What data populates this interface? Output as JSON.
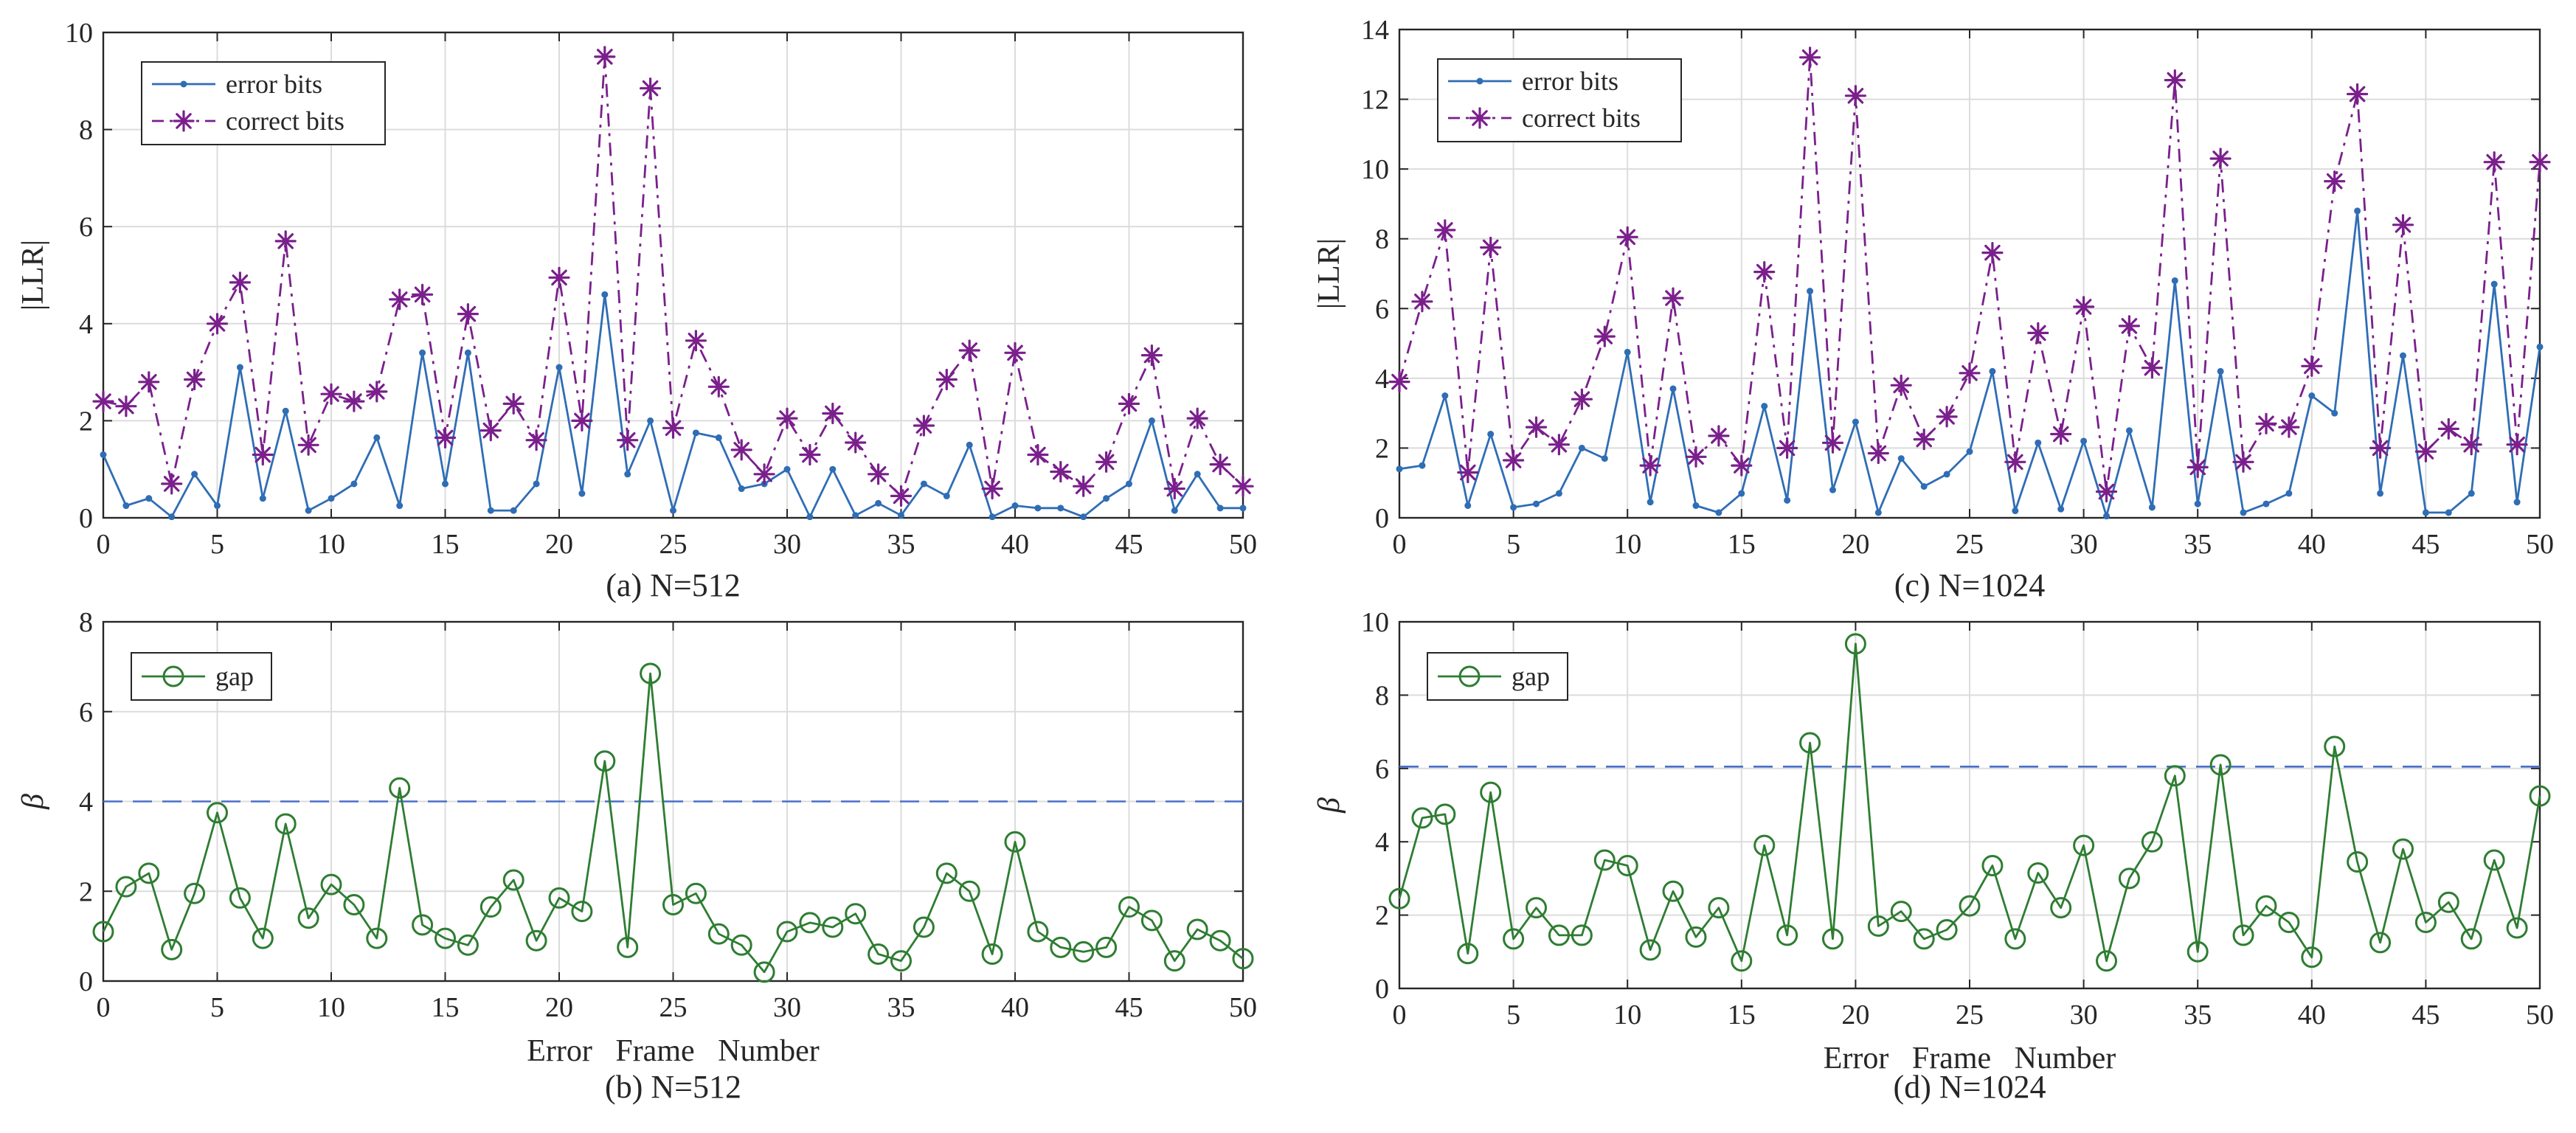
{
  "colors": {
    "error_bits": "#2f6db5",
    "correct_bits": "#7a1f8c",
    "gap": "#2e7d32",
    "threshold": "#4a6fc8",
    "grid": "#dcdcdc",
    "axis": "#262626"
  },
  "chart_data": [
    {
      "id": "a",
      "type": "line",
      "caption": "(a) N=512",
      "xlabel": "",
      "ylabel": "|LLR|",
      "xlim": [
        0,
        50
      ],
      "ylim": [
        0,
        10
      ],
      "xticks": [
        0,
        5,
        10,
        15,
        20,
        25,
        30,
        35,
        40,
        45,
        50
      ],
      "yticks": [
        0,
        2,
        4,
        6,
        8,
        10
      ],
      "grid": true,
      "legend": "top-left",
      "x": [
        0,
        1,
        2,
        3,
        4,
        5,
        6,
        7,
        8,
        9,
        10,
        11,
        12,
        13,
        14,
        15,
        16,
        17,
        18,
        19,
        20,
        21,
        22,
        23,
        24,
        25,
        26,
        27,
        28,
        29,
        30,
        31,
        32,
        33,
        34,
        35,
        36,
        37,
        38,
        39,
        40,
        41,
        42,
        43,
        44,
        45,
        46,
        47,
        48,
        49,
        50
      ],
      "series": [
        {
          "name": "error bits",
          "style": "solid-dot",
          "values": [
            1.3,
            0.25,
            0.4,
            0.02,
            0.9,
            0.25,
            3.1,
            0.4,
            2.2,
            0.15,
            0.4,
            0.7,
            1.65,
            0.25,
            3.4,
            0.7,
            3.4,
            0.15,
            0.15,
            0.7,
            3.1,
            0.5,
            4.6,
            0.9,
            2.0,
            0.15,
            1.75,
            1.65,
            0.6,
            0.7,
            1.0,
            0.02,
            1.0,
            0.05,
            0.3,
            0.05,
            0.7,
            0.45,
            1.5,
            0.02,
            0.25,
            0.2,
            0.2,
            0.02,
            0.4,
            0.7,
            2.0,
            0.15,
            0.9,
            0.2,
            0.2
          ]
        },
        {
          "name": "correct bits",
          "style": "dashdot-star",
          "values": [
            2.4,
            2.3,
            2.8,
            0.7,
            2.85,
            4.0,
            4.85,
            1.3,
            5.7,
            1.5,
            2.55,
            2.4,
            2.6,
            4.5,
            4.6,
            1.65,
            4.2,
            1.8,
            2.35,
            1.6,
            4.95,
            2.0,
            9.5,
            1.6,
            8.85,
            1.85,
            3.65,
            2.7,
            1.4,
            0.9,
            2.05,
            1.3,
            2.15,
            1.55,
            0.9,
            0.45,
            1.9,
            2.85,
            3.45,
            0.6,
            3.4,
            1.3,
            0.95,
            0.65,
            1.15,
            2.35,
            3.35,
            0.6,
            2.05,
            1.1,
            0.65
          ]
        }
      ]
    },
    {
      "id": "b",
      "type": "line",
      "caption": "(b) N=512",
      "xlabel": "Error   Frame   Number",
      "ylabel": "β",
      "xlim": [
        0,
        50
      ],
      "ylim": [
        0,
        8
      ],
      "xticks": [
        0,
        5,
        10,
        15,
        20,
        25,
        30,
        35,
        40,
        45,
        50
      ],
      "yticks": [
        0,
        2,
        4,
        6,
        8
      ],
      "grid": true,
      "legend": "top-left",
      "threshold": 4.0,
      "x": [
        0,
        1,
        2,
        3,
        4,
        5,
        6,
        7,
        8,
        9,
        10,
        11,
        12,
        13,
        14,
        15,
        16,
        17,
        18,
        19,
        20,
        21,
        22,
        23,
        24,
        25,
        26,
        27,
        28,
        29,
        30,
        31,
        32,
        33,
        34,
        35,
        36,
        37,
        38,
        39,
        40,
        41,
        42,
        43,
        44,
        45,
        46,
        47,
        48,
        49,
        50
      ],
      "series": [
        {
          "name": "gap",
          "style": "solid-circle",
          "values": [
            1.1,
            2.1,
            2.4,
            0.7,
            1.95,
            3.75,
            1.85,
            0.95,
            3.5,
            1.4,
            2.15,
            1.7,
            0.95,
            4.3,
            1.25,
            0.95,
            0.8,
            1.65,
            2.25,
            0.9,
            1.85,
            1.55,
            4.9,
            0.75,
            6.85,
            1.7,
            1.95,
            1.05,
            0.8,
            0.2,
            1.1,
            1.3,
            1.2,
            1.5,
            0.6,
            0.45,
            1.2,
            2.4,
            2.0,
            0.6,
            3.1,
            1.1,
            0.75,
            0.65,
            0.75,
            1.65,
            1.35,
            0.45,
            1.15,
            0.9,
            0.5
          ]
        }
      ]
    },
    {
      "id": "c",
      "type": "line",
      "caption": "(c) N=1024",
      "xlabel": "",
      "ylabel": "|LLR|",
      "xlim": [
        0,
        50
      ],
      "ylim": [
        0,
        14
      ],
      "xticks": [
        0,
        5,
        10,
        15,
        20,
        25,
        30,
        35,
        40,
        45,
        50
      ],
      "yticks": [
        0,
        2,
        4,
        6,
        8,
        10,
        12,
        14
      ],
      "grid": true,
      "legend": "top-left",
      "x": [
        0,
        1,
        2,
        3,
        4,
        5,
        6,
        7,
        8,
        9,
        10,
        11,
        12,
        13,
        14,
        15,
        16,
        17,
        18,
        19,
        20,
        21,
        22,
        23,
        24,
        25,
        26,
        27,
        28,
        29,
        30,
        31,
        32,
        33,
        34,
        35,
        36,
        37,
        38,
        39,
        40,
        41,
        42,
        43,
        44,
        45,
        46,
        47,
        48,
        49,
        50
      ],
      "series": [
        {
          "name": "error bits",
          "style": "solid-dot",
          "values": [
            1.4,
            1.5,
            3.5,
            0.35,
            2.4,
            0.3,
            0.4,
            0.7,
            2.0,
            1.7,
            4.75,
            0.45,
            3.7,
            0.35,
            0.15,
            0.7,
            3.2,
            0.5,
            6.5,
            0.8,
            2.75,
            0.15,
            1.7,
            0.9,
            1.25,
            1.9,
            4.2,
            0.2,
            2.15,
            0.25,
            2.2,
            0.05,
            2.5,
            0.3,
            6.8,
            0.4,
            4.2,
            0.15,
            0.4,
            0.7,
            3.5,
            3.0,
            8.8,
            0.7,
            4.65,
            0.15,
            0.15,
            0.7,
            6.7,
            0.45,
            4.9
          ]
        },
        {
          "name": "correct bits",
          "style": "dashdot-star",
          "values": [
            3.9,
            6.2,
            8.25,
            1.3,
            7.75,
            1.65,
            2.6,
            2.1,
            3.4,
            5.2,
            8.05,
            1.5,
            6.3,
            1.75,
            2.35,
            1.5,
            7.05,
            2.0,
            13.2,
            2.15,
            12.1,
            1.85,
            3.8,
            2.25,
            2.9,
            4.15,
            7.6,
            1.6,
            5.3,
            2.4,
            6.05,
            0.75,
            5.5,
            4.3,
            12.55,
            1.45,
            10.3,
            1.6,
            2.7,
            2.6,
            4.35,
            9.65,
            12.15,
            2.0,
            8.4,
            1.9,
            2.55,
            2.1,
            10.2,
            2.1,
            10.2
          ]
        }
      ]
    },
    {
      "id": "d",
      "type": "line",
      "caption": "(d) N=1024",
      "xlabel": "Error   Frame   Number",
      "ylabel": "β",
      "xlim": [
        0,
        50
      ],
      "ylim": [
        0,
        10
      ],
      "xticks": [
        0,
        5,
        10,
        15,
        20,
        25,
        30,
        35,
        40,
        45,
        50
      ],
      "yticks": [
        0,
        2,
        4,
        6,
        8,
        10
      ],
      "grid": true,
      "legend": "top-left",
      "threshold": 6.05,
      "x": [
        0,
        1,
        2,
        3,
        4,
        5,
        6,
        7,
        8,
        9,
        10,
        11,
        12,
        13,
        14,
        15,
        16,
        17,
        18,
        19,
        20,
        21,
        22,
        23,
        24,
        25,
        26,
        27,
        28,
        29,
        30,
        31,
        32,
        33,
        34,
        35,
        36,
        37,
        38,
        39,
        40,
        41,
        42,
        43,
        44,
        45,
        46,
        47,
        48,
        49,
        50
      ],
      "series": [
        {
          "name": "gap",
          "style": "solid-circle",
          "values": [
            2.45,
            4.65,
            4.75,
            0.95,
            5.35,
            1.35,
            2.2,
            1.45,
            1.45,
            3.5,
            3.35,
            1.05,
            2.65,
            1.4,
            2.2,
            0.75,
            3.9,
            1.45,
            6.7,
            1.35,
            9.4,
            1.7,
            2.1,
            1.35,
            1.6,
            2.25,
            3.35,
            1.35,
            3.15,
            2.2,
            3.9,
            0.75,
            3.0,
            4.0,
            5.8,
            1.0,
            6.1,
            1.45,
            2.25,
            1.8,
            0.85,
            6.6,
            3.45,
            1.25,
            3.8,
            1.8,
            2.35,
            1.35,
            3.5,
            1.65,
            5.25
          ]
        }
      ]
    }
  ]
}
